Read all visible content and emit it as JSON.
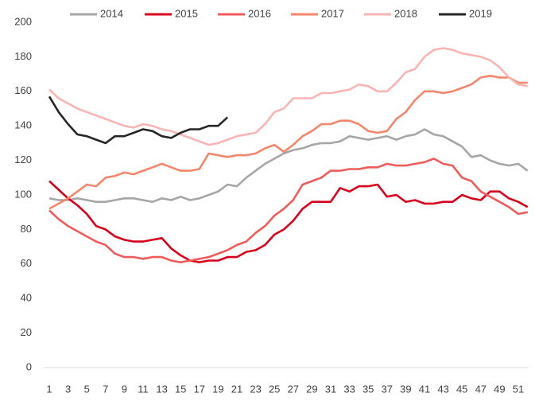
{
  "chart_data": {
    "type": "line",
    "categories": [
      1,
      null,
      3,
      null,
      5,
      null,
      7,
      null,
      9,
      null,
      11,
      null,
      13,
      null,
      15,
      null,
      17,
      null,
      19,
      null,
      21,
      null,
      23,
      null,
      25,
      null,
      27,
      null,
      29,
      null,
      31,
      null,
      33,
      null,
      35,
      null,
      37,
      null,
      39,
      null,
      41,
      null,
      43,
      null,
      45,
      null,
      47,
      null,
      49,
      null,
      51,
      null
    ],
    "series": [
      {
        "name": "2014",
        "color": "#a6a6a6",
        "values": [
          98,
          97,
          97,
          98,
          97,
          96,
          96,
          97,
          98,
          98,
          97,
          96,
          98,
          97,
          99,
          97,
          98,
          100,
          102,
          106,
          105,
          110,
          114,
          118,
          121,
          124,
          126,
          127,
          129,
          130,
          130,
          131,
          134,
          133,
          132,
          133,
          134,
          132,
          134,
          135,
          138,
          135,
          134,
          131,
          128,
          122,
          123,
          120,
          118,
          117,
          118,
          114
        ]
      },
      {
        "name": "2015",
        "color": "#d9001b",
        "values": [
          108,
          103,
          98,
          94,
          89,
          82,
          80,
          76,
          74,
          73,
          73,
          74,
          75,
          69,
          65,
          62,
          61,
          62,
          62,
          64,
          64,
          67,
          68,
          71,
          77,
          80,
          85,
          92,
          96,
          96,
          96,
          104,
          102,
          105,
          105,
          106,
          99,
          100,
          96,
          97,
          95,
          95,
          96,
          96,
          100,
          98,
          97,
          102,
          102,
          98,
          96,
          93
        ]
      },
      {
        "name": "2016",
        "color": "#ef5b5b",
        "values": [
          91,
          86,
          82,
          79,
          76,
          73,
          71,
          66,
          64,
          64,
          63,
          64,
          64,
          62,
          61,
          62,
          63,
          64,
          66,
          68,
          71,
          73,
          78,
          82,
          88,
          92,
          97,
          106,
          108,
          110,
          114,
          114,
          115,
          115,
          116,
          116,
          118,
          117,
          117,
          118,
          119,
          121,
          118,
          117,
          110,
          108,
          102,
          99,
          96,
          93,
          89,
          90
        ]
      },
      {
        "name": "2017",
        "color": "#f4866c",
        "values": [
          92,
          95,
          98,
          102,
          106,
          105,
          110,
          111,
          113,
          112,
          114,
          116,
          118,
          116,
          114,
          114,
          115,
          124,
          123,
          122,
          123,
          123,
          124,
          127,
          129,
          125,
          129,
          134,
          137,
          141,
          141,
          143,
          143,
          141,
          137,
          136,
          137,
          144,
          148,
          155,
          160,
          160,
          159,
          160,
          162,
          164,
          168,
          169,
          168,
          168,
          165,
          165
        ]
      },
      {
        "name": "2018",
        "color": "#f9b4b4",
        "values": [
          161,
          156,
          153,
          150,
          148,
          146,
          144,
          142,
          140,
          139,
          141,
          140,
          138,
          137,
          135,
          133,
          131,
          129,
          130,
          132,
          134,
          135,
          136,
          141,
          148,
          150,
          156,
          156,
          156,
          159,
          159,
          160,
          161,
          164,
          163,
          160,
          160,
          165,
          171,
          173,
          180,
          184,
          185,
          184,
          182,
          181,
          180,
          178,
          174,
          168,
          164,
          163
        ]
      },
      {
        "name": "2019",
        "color": "#262626",
        "values": [
          157,
          148,
          141,
          135,
          134,
          132,
          130,
          134,
          134,
          136,
          138,
          137,
          134,
          133,
          136,
          138,
          138,
          140,
          140,
          145,
          null,
          null,
          null,
          null,
          null,
          null,
          null,
          null,
          null,
          null,
          null,
          null,
          null,
          null,
          null,
          null,
          null,
          null,
          null,
          null,
          null,
          null,
          null,
          null,
          null,
          null,
          null,
          null,
          null,
          null,
          null,
          null
        ]
      }
    ],
    "ylim": [
      0,
      200
    ],
    "yticks": [
      0,
      20,
      40,
      60,
      80,
      100,
      120,
      140,
      160,
      180,
      200
    ],
    "grid": false,
    "legend": "top"
  }
}
